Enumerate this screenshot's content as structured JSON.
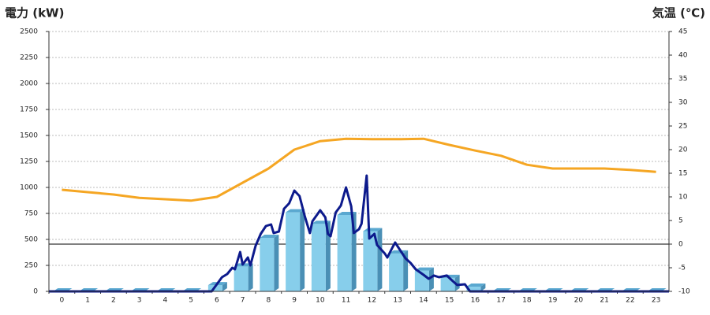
{
  "chart_data": {
    "type": "bar",
    "y_label": "電力 (kW)",
    "y2_label": "気温 (℃)",
    "y_label_color": "#1f6fb5",
    "y2_label_color": "#e8832a",
    "categories": [
      "0",
      "1",
      "2",
      "3",
      "4",
      "5",
      "6",
      "7",
      "8",
      "9",
      "10",
      "11",
      "12",
      "13",
      "14",
      "15",
      "16",
      "17",
      "18",
      "19",
      "20",
      "21",
      "22",
      "23"
    ],
    "ylim": [
      0,
      2500
    ],
    "yticks": [
      0,
      250,
      500,
      750,
      1000,
      1250,
      1500,
      1750,
      2000,
      2250,
      2500
    ],
    "y2lim": [
      -10,
      45
    ],
    "y2ticks": [
      -10,
      -5,
      0,
      5,
      10,
      15,
      20,
      25,
      30,
      35,
      40,
      45
    ],
    "grid": true,
    "series": [
      {
        "type": "bar",
        "color": "#87ceeb",
        "values": [
          0,
          0,
          0,
          0,
          0,
          0,
          60,
          240,
          515,
          760,
          650,
          735,
          580,
          365,
          200,
          130,
          45,
          0,
          0,
          0,
          0,
          0,
          0,
          0
        ]
      },
      {
        "type": "line",
        "color": "#0d1a8c",
        "x": [
          -0.5,
          5.8,
          6.2,
          6.4,
          6.6,
          6.7,
          6.9,
          7.0,
          7.2,
          7.3,
          7.5,
          7.7,
          7.9,
          8.1,
          8.2,
          8.4,
          8.6,
          8.8,
          9.0,
          9.2,
          9.4,
          9.6,
          9.7,
          10.0,
          10.2,
          10.3,
          10.4,
          10.6,
          10.8,
          11.0,
          11.2,
          11.3,
          11.5,
          11.6,
          11.8,
          11.9,
          12.1,
          12.2,
          12.5,
          12.6,
          12.8,
          12.9,
          13.1,
          13.3,
          13.5,
          13.7,
          14.0,
          14.2,
          14.4,
          14.6,
          14.9,
          15.1,
          15.3,
          15.6,
          15.8,
          23.5
        ],
        "values": [
          0,
          0,
          136,
          167,
          227,
          212,
          379,
          258,
          326,
          250,
          439,
          553,
          629,
          644,
          561,
          576,
          795,
          848,
          970,
          917,
          727,
          561,
          674,
          780,
          712,
          553,
          530,
          758,
          826,
          1000,
          818,
          561,
          598,
          651,
          1114,
          508,
          553,
          447,
          364,
          326,
          424,
          470,
          394,
          318,
          273,
          212,
          159,
          121,
          152,
          136,
          152,
          106,
          61,
          68,
          0,
          0
        ]
      },
      {
        "type": "line",
        "color": "#f5a623",
        "axis": "y2",
        "values": [
          11.5,
          11,
          10.5,
          9.8,
          9.5,
          9.2,
          10,
          13,
          16,
          20,
          21.8,
          22.3,
          22.2,
          22.2,
          22.3,
          21,
          19.8,
          18.7,
          16.8,
          16,
          16,
          16,
          15.7,
          15.3
        ]
      }
    ]
  }
}
